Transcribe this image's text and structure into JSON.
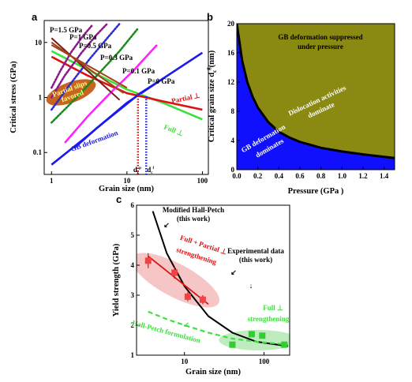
{
  "chart_data": [
    {
      "panel": "a",
      "type": "line",
      "xlabel": "Grain size (nm)",
      "ylabel": "Critical stress (GPa)",
      "xscale": "log",
      "yscale": "log",
      "xlim": [
        0.8,
        120
      ],
      "ylim": [
        0.04,
        25
      ],
      "x_ticks": [
        "1",
        "10",
        "100"
      ],
      "y_ticks": [
        "0.1",
        "1",
        "10"
      ],
      "series": [
        {
          "name": "GB deformation",
          "color": "#1a1aee",
          "style": "solid",
          "x": [
            1,
            3,
            10,
            30,
            100
          ],
          "y": [
            0.06,
            0.2,
            0.8,
            2.2,
            6.5
          ]
        },
        {
          "name": "Full ⊥",
          "color": "#3de03d",
          "style": "solid",
          "x": [
            1,
            3,
            10,
            30,
            100
          ],
          "y": [
            7,
            3.2,
            1.4,
            0.8,
            0.4
          ]
        },
        {
          "name": "Partial ⊥",
          "color": "#dd1111",
          "style": "solid",
          "x": [
            1,
            3,
            10,
            30,
            100
          ],
          "y": [
            5.5,
            2.5,
            1.2,
            0.85,
            0.6
          ]
        },
        {
          "name": "P=0 GPa",
          "color": "#1a1aee",
          "style": "solid",
          "x": [
            2,
            4,
            8,
            15,
            30
          ],
          "y": [
            0.12,
            0.28,
            0.6,
            1.2,
            2.2
          ]
        },
        {
          "name": "P=0.1 GPa",
          "color": "#ff22ff",
          "style": "solid",
          "x": [
            1.5,
            3,
            6,
            12,
            25
          ],
          "y": [
            0.15,
            0.45,
            1.2,
            3,
            9
          ]
        },
        {
          "name": "P=0.3 GPa",
          "color": "#1a8a1a",
          "style": "dotted",
          "x": [
            1,
            2,
            4,
            8,
            14
          ],
          "y": [
            0.35,
            0.9,
            2.5,
            7,
            18
          ]
        },
        {
          "name": "P=0.5 GPa",
          "color": "#2d2dd0",
          "style": "dotted",
          "x": [
            1,
            1.8,
            3.2,
            5.5,
            8
          ],
          "y": [
            0.6,
            1.8,
            5,
            12,
            22
          ]
        },
        {
          "name": "P=1 GPa",
          "color": "#8a1a8a",
          "style": "dotted",
          "x": [
            1,
            1.5,
            2.5,
            4,
            5.5
          ],
          "y": [
            1,
            2.5,
            6.5,
            14,
            22
          ]
        },
        {
          "name": "P=1.5 GPa",
          "color": "#8a1a8a",
          "style": "dotted",
          "x": [
            1,
            1.3,
            1.8,
            2.6,
            3.4
          ],
          "y": [
            1.5,
            3,
            6.5,
            13,
            20
          ]
        }
      ],
      "annotations": [
        "P=1.5 GPa",
        "P=1 GPa",
        "P=0.5 GPa",
        "P=0.3 GPa",
        "P=0.1 GPa",
        "P=0 GPa",
        "Partial slips favored",
        "Partial ⊥",
        "Full ⊥",
        "GB deformation",
        "d",
        "d"
      ],
      "annotation_subscripts": [
        "c",
        "c"
      ],
      "annotation_superscripts": [
        "p",
        "f"
      ]
    },
    {
      "panel": "b",
      "type": "area",
      "xlabel": "Pressure (GPa )",
      "ylabel_main": "Critical grain size d",
      "ylabel_sub": "c",
      "ylabel_sup": "g",
      "ylabel_unit": "(nm)",
      "xlim": [
        0,
        1.5
      ],
      "ylim": [
        0,
        20
      ],
      "x_ticks": [
        "0.0",
        "0.2",
        "0.4",
        "0.6",
        "0.8",
        "1.0",
        "1.2",
        "1.4"
      ],
      "y_ticks": [
        "0",
        "4",
        "8",
        "12",
        "16",
        "20"
      ],
      "boundary": {
        "x": [
          0,
          0.02,
          0.05,
          0.1,
          0.15,
          0.2,
          0.3,
          0.4,
          0.5,
          0.6,
          0.8,
          1.0,
          1.2,
          1.5
        ],
        "y": [
          20,
          18,
          15,
          12,
          10,
          8.5,
          6.5,
          5.2,
          4.4,
          3.8,
          3.0,
          2.5,
          2.1,
          1.6
        ]
      },
      "colors": {
        "upper": "#8a8a12",
        "lower": "#1010ff",
        "top": "#7f7f10"
      },
      "annotations": [
        "GB deformation suppressed",
        "under pressure",
        "Dislocation activities",
        "dominate",
        "GB deformation",
        "dominates"
      ]
    },
    {
      "panel": "c",
      "type": "scatter",
      "xlabel": "Grain size (nm)",
      "ylabel": "Yield strength (GPa)",
      "xscale": "log",
      "xlim": [
        2.5,
        210
      ],
      "ylim": [
        1,
        6
      ],
      "x_ticks": [
        "10",
        "100"
      ],
      "y_ticks": [
        "1",
        "2",
        "3",
        "4",
        "5",
        "6"
      ],
      "red_points": {
        "x": [
          3.5,
          7.5,
          11,
          17
        ],
        "y": [
          4.15,
          3.75,
          2.95,
          2.85
        ],
        "err": [
          0.25,
          0.2,
          0.15,
          0.15
        ]
      },
      "green_points": {
        "x": [
          40,
          70,
          95,
          180
        ],
        "y": [
          1.35,
          1.7,
          1.65,
          1.35
        ]
      },
      "modified_hall_petch": {
        "x": [
          4,
          6,
          10,
          20,
          40,
          80,
          200
        ],
        "y": [
          5.8,
          4.4,
          3.3,
          2.3,
          1.75,
          1.45,
          1.3
        ]
      },
      "hall_petch_dashed": {
        "x": [
          3.5,
          6,
          10,
          20,
          40,
          80,
          200
        ],
        "y": [
          2.45,
          2.2,
          2.0,
          1.75,
          1.55,
          1.45,
          1.35
        ]
      },
      "partial_fit": {
        "x": [
          3.5,
          20
        ],
        "y": [
          4.3,
          2.7
        ]
      },
      "annotations": [
        "Modified Hall-Petch",
        "(this work)",
        "Full + Partial ⊥",
        "strengthening",
        "Experimental data",
        "(this work)",
        "Full ⊥",
        "strengthening",
        "Hall-Petch formulation"
      ]
    }
  ]
}
